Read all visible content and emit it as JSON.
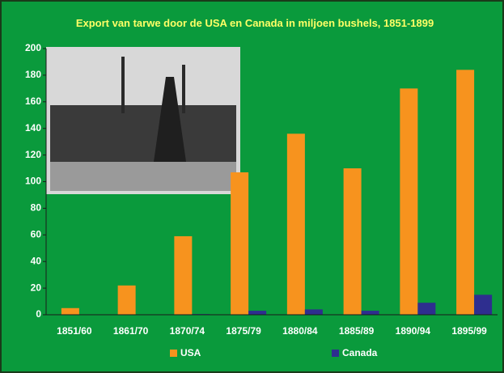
{
  "chart_data": {
    "type": "bar",
    "title": "Export van tarwe door de USA en Canada in miljoen bushels, 1851-1899",
    "categories": [
      "1851/60",
      "1861/70",
      "1870/74",
      "1875/79",
      "1880/84",
      "1885/89",
      "1890/94",
      "1895/99"
    ],
    "series": [
      {
        "name": "USA",
        "color": "#f7931e",
        "values": [
          5,
          22,
          59,
          107,
          136,
          110,
          170,
          184
        ]
      },
      {
        "name": "Canada",
        "color": "#2e2e8f",
        "values": [
          0,
          0,
          0.5,
          3,
          4,
          3,
          9,
          15
        ]
      }
    ],
    "ylim": [
      0,
      200
    ],
    "yticks": [
      0,
      20,
      40,
      60,
      80,
      100,
      120,
      140,
      160,
      180,
      200
    ],
    "grid": false
  }
}
